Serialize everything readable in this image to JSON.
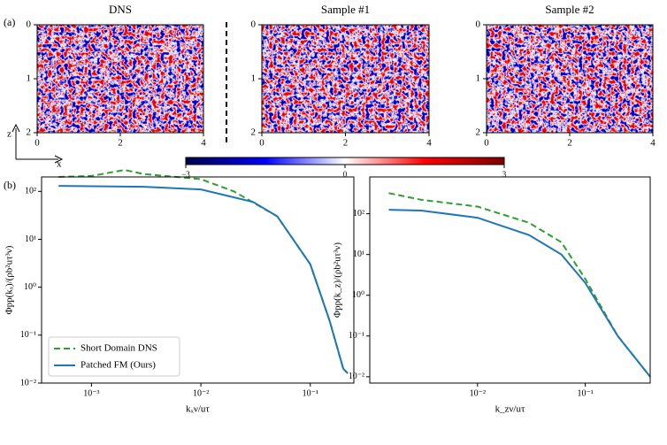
{
  "panel_labels": [
    "(a)",
    "(b)"
  ],
  "axes_indicator": {
    "vertical": "z",
    "horizontal": "x"
  },
  "chart_data": [
    {
      "type": "heatmap",
      "title": "DNS",
      "xlim": [
        0,
        4
      ],
      "ylim": [
        0,
        2
      ],
      "xticks": [
        0,
        2,
        4
      ],
      "yticks": [
        0,
        1,
        2
      ]
    },
    {
      "type": "heatmap",
      "title": "Sample #1",
      "xlim": [
        0,
        4
      ],
      "ylim": [
        0,
        2
      ],
      "xticks": [
        0,
        2,
        4
      ],
      "yticks": [
        0,
        1,
        2
      ]
    },
    {
      "type": "heatmap",
      "title": "Sample #2",
      "xlim": [
        0,
        4
      ],
      "ylim": [
        0,
        2
      ],
      "xticks": [
        0,
        2,
        4
      ],
      "yticks": [
        0,
        1,
        2
      ]
    },
    {
      "type": "colorbar",
      "xlim": [
        -3,
        3
      ],
      "xticks": [
        {
          "value": -3,
          "label": "−3"
        },
        0,
        3
      ]
    },
    {
      "type": "line",
      "log": true,
      "x_label": "kₓν/uτ",
      "y_label": "Φpp(kₓ)/(ρb²uτ³ν)",
      "legend": "lower left",
      "xlim": [
        0.00035,
        0.25
      ],
      "ylim": [
        0.01,
        200
      ],
      "xticks": [
        {
          "value": 0.001,
          "label": "10⁻³"
        },
        {
          "value": 0.01,
          "label": "10⁻²"
        },
        {
          "value": 0.1,
          "label": "10⁻¹"
        }
      ],
      "yticks": [
        {
          "value": 0.01,
          "label": "10⁻²"
        },
        {
          "value": 0.1,
          "label": "10⁻¹"
        },
        {
          "value": 1,
          "label": "10⁰"
        },
        {
          "value": 10,
          "label": "10¹"
        },
        {
          "value": 100,
          "label": "10²"
        }
      ],
      "series": [
        {
          "name": "Short Domain DNS",
          "color": "#2ca02c",
          "dash": true,
          "x": [
            0.0005,
            0.001,
            0.002,
            0.003,
            0.01,
            0.02,
            0.05,
            0.1,
            0.15,
            0.2,
            0.22
          ],
          "values": [
            200,
            210,
            280,
            230,
            180,
            100,
            30,
            3,
            0.2,
            0.02,
            0.016
          ]
        },
        {
          "name": "Patched FM (Ours)",
          "color": "#1f77b4",
          "dash": false,
          "x": [
            0.0005,
            0.001,
            0.003,
            0.01,
            0.03,
            0.05,
            0.1,
            0.15,
            0.2,
            0.22
          ],
          "values": [
            130,
            128,
            125,
            110,
            60,
            30,
            3,
            0.2,
            0.02,
            0.016
          ]
        }
      ]
    },
    {
      "type": "line",
      "log": true,
      "x_label": "k_zν/uτ",
      "y_label": "Φpp(k_z)/(ρb²uτ³ν)",
      "xlim": [
        0.001,
        0.4
      ],
      "ylim": [
        0.007,
        800
      ],
      "xticks": [
        {
          "value": 0.01,
          "label": "10⁻²"
        },
        {
          "value": 0.1,
          "label": "10⁻¹"
        }
      ],
      "yticks": [
        {
          "value": 0.01,
          "label": "10⁻²"
        },
        {
          "value": 0.1,
          "label": "10⁻¹"
        },
        {
          "value": 1,
          "label": "10⁰"
        },
        {
          "value": 10,
          "label": "10¹"
        },
        {
          "value": 100,
          "label": "10²"
        }
      ],
      "series": [
        {
          "name": "Short Domain DNS",
          "color": "#2ca02c",
          "dash": true,
          "x": [
            0.0015,
            0.003,
            0.01,
            0.03,
            0.06,
            0.1,
            0.2,
            0.4
          ],
          "values": [
            320,
            220,
            150,
            60,
            20,
            2.5,
            0.1,
            0.01
          ]
        },
        {
          "name": "Patched FM (Ours)",
          "color": "#1f77b4",
          "dash": false,
          "x": [
            0.0015,
            0.003,
            0.01,
            0.03,
            0.06,
            0.1,
            0.2,
            0.4
          ],
          "values": [
            125,
            120,
            80,
            30,
            10,
            2,
            0.1,
            0.01
          ]
        }
      ]
    }
  ]
}
